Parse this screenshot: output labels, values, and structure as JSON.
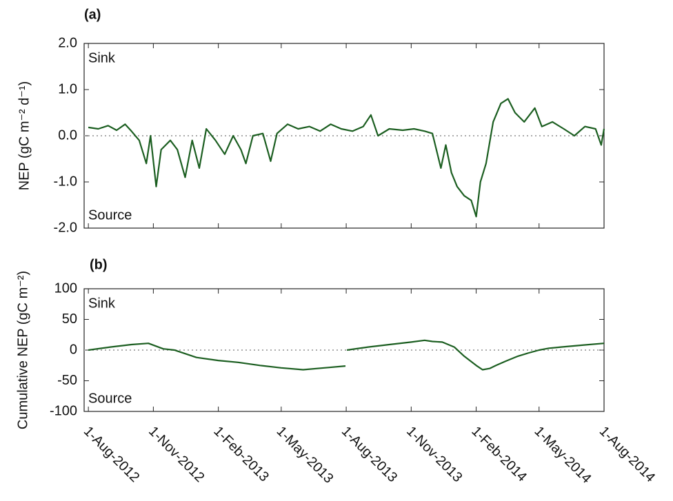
{
  "chart_data": [
    {
      "type": "line",
      "title": "(a)",
      "ylabel": "NEP (gC m⁻² d⁻¹)",
      "annotations": [
        "Sink",
        "Source"
      ],
      "xlim": [
        "2012-07-26",
        "2014-08-01"
      ],
      "ylim": [
        -2,
        2
      ],
      "yticks": [
        {
          "value": 2,
          "label": "2.0"
        },
        {
          "value": 1,
          "label": "1.0"
        },
        {
          "value": 0,
          "label": "0.0"
        },
        {
          "value": -1,
          "label": "-1.0"
        },
        {
          "value": -2,
          "label": "-2.0"
        }
      ],
      "zero_line": true,
      "x": [
        "2012-08-01",
        "2012-08-15",
        "2012-08-29",
        "2012-09-10",
        "2012-09-22",
        "2012-10-01",
        "2012-10-12",
        "2012-10-22",
        "2012-10-28",
        "2012-11-05",
        "2012-11-12",
        "2012-11-25",
        "2012-12-05",
        "2012-12-16",
        "2012-12-26",
        "2013-01-05",
        "2013-01-15",
        "2013-01-28",
        "2013-02-10",
        "2013-02-22",
        "2013-03-05",
        "2013-03-12",
        "2013-03-22",
        "2013-04-05",
        "2013-04-16",
        "2013-04-25",
        "2013-05-10",
        "2013-05-25",
        "2013-06-10",
        "2013-06-25",
        "2013-07-10",
        "2013-07-25",
        "2013-08-10",
        "2013-08-25",
        "2013-09-05",
        "2013-09-15",
        "2013-10-01",
        "2013-10-20",
        "2013-11-05",
        "2013-11-20",
        "2013-12-01",
        "2013-12-13",
        "2013-12-20",
        "2013-12-28",
        "2014-01-05",
        "2014-01-15",
        "2014-01-25",
        "2014-02-01",
        "2014-02-07",
        "2014-02-15",
        "2014-02-25",
        "2014-03-08",
        "2014-03-18",
        "2014-03-28",
        "2014-04-10",
        "2014-04-25",
        "2014-05-05",
        "2014-05-20",
        "2014-06-05",
        "2014-06-20",
        "2014-07-05",
        "2014-07-20",
        "2014-07-28",
        "2014-08-01"
      ],
      "series": [
        {
          "color": "#1b5e20",
          "values": [
            0.18,
            0.15,
            0.22,
            0.12,
            0.25,
            0.1,
            -0.1,
            -0.6,
            0.0,
            -1.1,
            -0.3,
            -0.1,
            -0.3,
            -0.9,
            -0.1,
            -0.7,
            0.15,
            -0.1,
            -0.4,
            0.0,
            -0.3,
            -0.6,
            0.0,
            0.05,
            -0.55,
            0.05,
            0.25,
            0.15,
            0.2,
            0.1,
            0.25,
            0.15,
            0.1,
            0.2,
            0.45,
            0.0,
            0.15,
            0.12,
            0.15,
            0.1,
            0.05,
            -0.7,
            -0.2,
            -0.8,
            -1.1,
            -1.3,
            -1.4,
            -1.75,
            -1.0,
            -0.6,
            0.3,
            0.7,
            0.8,
            0.5,
            0.3,
            0.6,
            0.2,
            0.3,
            0.15,
            0.0,
            0.2,
            0.15,
            -0.2,
            0.15
          ]
        }
      ]
    },
    {
      "type": "line",
      "title": "(b)",
      "ylabel": "Cumulative NEP (gC m⁻²)",
      "annotations": [
        "Sink",
        "Source"
      ],
      "xlim": [
        "2012-07-26",
        "2014-08-01"
      ],
      "ylim": [
        -100,
        100
      ],
      "yticks": [
        100,
        50,
        0,
        -50,
        -100
      ],
      "xticks": [
        {
          "value": "2012-08-01",
          "label": "1-Aug-2012"
        },
        {
          "value": "2012-11-01",
          "label": "1-Nov-2012"
        },
        {
          "value": "2013-02-01",
          "label": "1-Feb-2013"
        },
        {
          "value": "2013-05-01",
          "label": "1-May-2013"
        },
        {
          "value": "2013-08-01",
          "label": "1-Aug-2013"
        },
        {
          "value": "2013-11-01",
          "label": "1-Nov-2013"
        },
        {
          "value": "2014-02-01",
          "label": "1-Feb-2014"
        },
        {
          "value": "2014-05-01",
          "label": "1-May-2014"
        },
        {
          "value": "2014-08-01",
          "label": "1-Aug-2014"
        }
      ],
      "zero_line": true,
      "x": [
        "2012-08-01",
        "2012-09-01",
        "2012-10-01",
        "2012-10-25",
        "2012-11-15",
        "2012-12-01",
        "2013-01-01",
        "2013-02-01",
        "2013-03-01",
        "2013-04-01",
        "2013-05-01",
        "2013-06-01",
        "2013-07-01",
        "2013-07-31",
        "2013-08-01",
        "2013-08-02",
        "2013-09-01",
        "2013-10-01",
        "2013-11-01",
        "2013-11-20",
        "2013-12-01",
        "2013-12-15",
        "2014-01-01",
        "2014-01-15",
        "2014-02-01",
        "2014-02-10",
        "2014-02-20",
        "2014-03-01",
        "2014-03-15",
        "2014-04-01",
        "2014-04-15",
        "2014-05-01",
        "2014-05-15",
        "2014-06-01",
        "2014-07-01",
        "2014-08-01"
      ],
      "series": [
        {
          "color": "#1b5e20",
          "values": [
            0,
            5,
            9,
            11,
            2,
            0,
            -12,
            -17,
            -20,
            -25,
            -29,
            -32,
            -29,
            -26,
            null,
            0,
            5,
            9,
            13,
            16,
            14,
            13,
            5,
            -10,
            -25,
            -32,
            -30,
            -25,
            -18,
            -10,
            -5,
            0,
            3,
            5,
            8,
            11
          ]
        }
      ]
    }
  ]
}
